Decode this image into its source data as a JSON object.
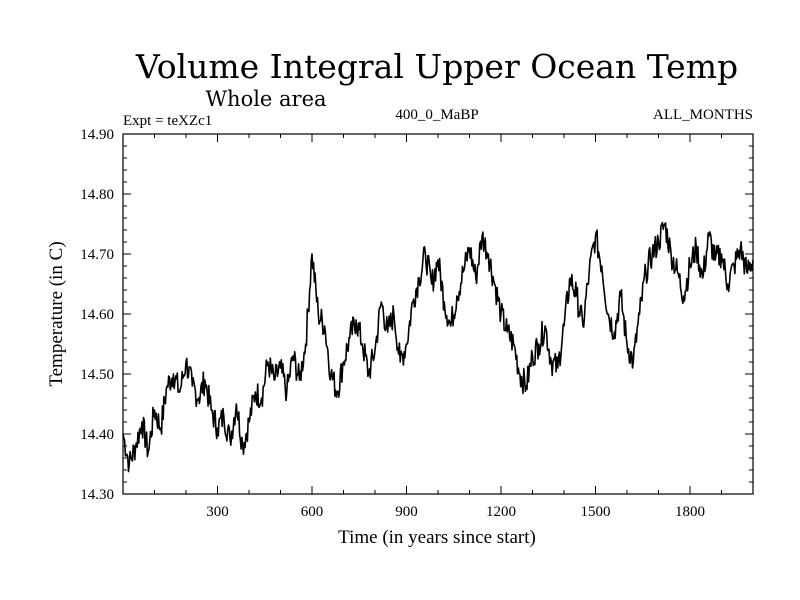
{
  "chart_data": {
    "type": "line",
    "title": "Volume Integral Upper Ocean Temp",
    "subtitle": "Whole area",
    "experiment_label": "Expt = teXZc1",
    "run_label": "400_0_MaBP",
    "months_label": "ALL_MONTHS",
    "xlabel": "Time (in years since start)",
    "ylabel": "Temperature (in C)",
    "xlim": [
      0,
      2000
    ],
    "ylim": [
      14.3,
      14.9
    ],
    "x_ticks": [
      300,
      600,
      900,
      1200,
      1500,
      1800
    ],
    "x_tick_labels": [
      "300",
      "600",
      "900",
      "1200",
      "1500",
      "1800"
    ],
    "y_ticks": [
      14.3,
      14.4,
      14.5,
      14.6,
      14.7,
      14.8,
      14.9
    ],
    "y_tick_labels": [
      "14.30",
      "14.40",
      "14.50",
      "14.60",
      "14.70",
      "14.80",
      "14.90"
    ],
    "grid": false,
    "series": [
      {
        "name": "Volume integral upper ocean temperature",
        "color": "#000000",
        "x": [
          0,
          20,
          40,
          60,
          80,
          100,
          120,
          140,
          160,
          180,
          200,
          220,
          240,
          260,
          280,
          300,
          320,
          340,
          360,
          380,
          400,
          420,
          440,
          460,
          480,
          500,
          520,
          540,
          560,
          580,
          600,
          620,
          640,
          660,
          680,
          700,
          720,
          740,
          760,
          780,
          800,
          820,
          840,
          860,
          880,
          900,
          920,
          940,
          960,
          980,
          1000,
          1020,
          1040,
          1060,
          1080,
          1100,
          1120,
          1140,
          1160,
          1180,
          1200,
          1220,
          1240,
          1260,
          1280,
          1300,
          1320,
          1340,
          1360,
          1380,
          1400,
          1420,
          1440,
          1460,
          1480,
          1500,
          1520,
          1540,
          1560,
          1580,
          1600,
          1620,
          1640,
          1660,
          1680,
          1700,
          1720,
          1740,
          1760,
          1780,
          1800,
          1820,
          1840,
          1860,
          1880,
          1900,
          1920,
          1940,
          1960,
          1980,
          2000
        ],
        "values": [
          14.4,
          14.35,
          14.38,
          14.42,
          14.37,
          14.44,
          14.41,
          14.48,
          14.5,
          14.47,
          14.52,
          14.48,
          14.46,
          14.49,
          14.44,
          14.41,
          14.43,
          14.39,
          14.45,
          14.38,
          14.42,
          14.47,
          14.46,
          14.52,
          14.49,
          14.51,
          14.47,
          14.53,
          14.49,
          14.55,
          14.7,
          14.6,
          14.58,
          14.5,
          14.47,
          14.52,
          14.56,
          14.59,
          14.55,
          14.5,
          14.54,
          14.62,
          14.57,
          14.6,
          14.52,
          14.55,
          14.62,
          14.66,
          14.7,
          14.65,
          14.69,
          14.62,
          14.58,
          14.63,
          14.67,
          14.71,
          14.66,
          14.73,
          14.7,
          14.65,
          14.6,
          14.57,
          14.55,
          14.5,
          14.48,
          14.53,
          14.55,
          14.58,
          14.52,
          14.51,
          14.58,
          14.66,
          14.63,
          14.58,
          14.67,
          14.73,
          14.68,
          14.6,
          14.57,
          14.63,
          14.55,
          14.52,
          14.6,
          14.67,
          14.7,
          14.72,
          14.75,
          14.7,
          14.67,
          14.63,
          14.68,
          14.71,
          14.66,
          14.73,
          14.69,
          14.7,
          14.65,
          14.68,
          14.71,
          14.67,
          14.69
        ]
      }
    ]
  }
}
